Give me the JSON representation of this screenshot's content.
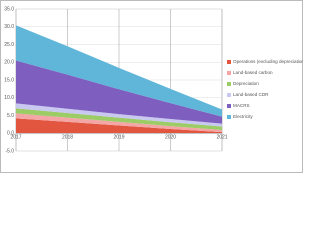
{
  "chart_data": {
    "type": "stacked-area",
    "categories": [
      "2017",
      "2018",
      "2019",
      "2020",
      "2021"
    ],
    "series": [
      {
        "name": "Operations (excluding depreciation)",
        "color": "#e2553f",
        "values": [
          4.2,
          3.2,
          2.2,
          1.2,
          0.3
        ]
      },
      {
        "name": "Land-based carbon",
        "color": "#f4a6a6",
        "values": [
          1.4,
          1.2,
          1.0,
          0.8,
          0.6
        ]
      },
      {
        "name": "Depreciation",
        "color": "#9ccc65",
        "values": [
          1.4,
          1.3,
          1.2,
          1.1,
          1.0
        ]
      },
      {
        "name": "Land-based CDR",
        "color": "#c8c8f0",
        "values": [
          1.4,
          1.2,
          1.0,
          0.9,
          0.8
        ]
      },
      {
        "name": "MACRS",
        "color": "#7e5fbf",
        "values": [
          12.1,
          9.6,
          7.0,
          4.5,
          2.0
        ]
      },
      {
        "name": "Electricity",
        "color": "#5fb6d9",
        "values": [
          9.9,
          8.0,
          6.0,
          4.0,
          2.0
        ]
      }
    ],
    "ylim": [
      -5,
      35
    ],
    "yticks": [
      {
        "value": -5,
        "label": "-5.0"
      },
      {
        "value": 0,
        "label": "0.0"
      },
      {
        "value": 5,
        "label": "5.0"
      },
      {
        "value": 10,
        "label": "10.0"
      },
      {
        "value": 15,
        "label": "15.0"
      },
      {
        "value": 20,
        "label": "20.0"
      },
      {
        "value": 25,
        "label": "25.0"
      },
      {
        "value": 30,
        "label": "30.0"
      },
      {
        "value": 35,
        "label": "35.0"
      }
    ],
    "grid": true
  }
}
